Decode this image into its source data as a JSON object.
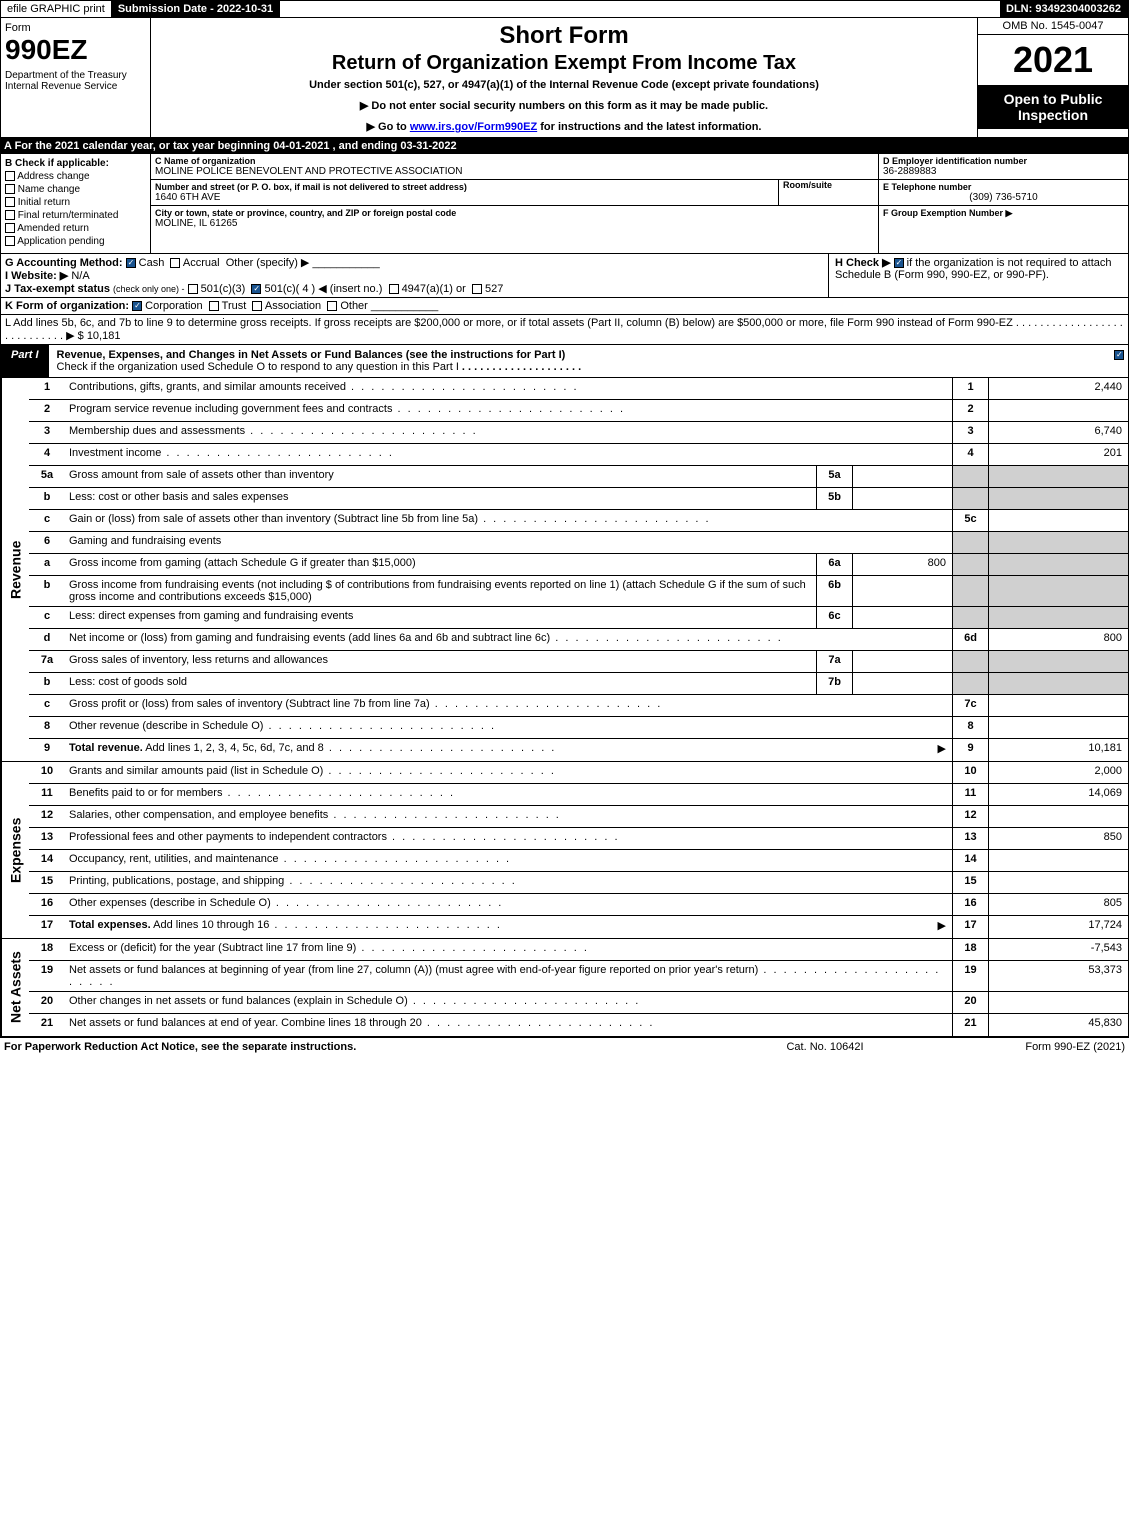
{
  "topbar": {
    "efile": "efile GRAPHIC print",
    "submission_label": "Submission Date - 2022-10-31",
    "dln": "DLN: 93492304003262"
  },
  "header": {
    "form_label": "Form",
    "form_no": "990EZ",
    "dept": "Department of the Treasury\nInternal Revenue Service",
    "title": "Short Form",
    "subtitle": "Return of Organization Exempt From Income Tax",
    "under": "Under section 501(c), 527, or 4947(a)(1) of the Internal Revenue Code (except private foundations)",
    "note1": "▶ Do not enter social security numbers on this form as it may be made public.",
    "note2_pre": "▶ Go to ",
    "note2_link": "www.irs.gov/Form990EZ",
    "note2_post": " for instructions and the latest information.",
    "omb": "OMB No. 1545-0047",
    "year": "2021",
    "open": "Open to Public Inspection"
  },
  "rowA": "A  For the 2021 calendar year, or tax year beginning 04-01-2021 , and ending 03-31-2022",
  "colB": {
    "hdr": "B  Check if applicable:",
    "opts": [
      "Address change",
      "Name change",
      "Initial return",
      "Final return/terminated",
      "Amended return",
      "Application pending"
    ]
  },
  "colC": {
    "name_label": "C Name of organization",
    "name": "MOLINE POLICE BENEVOLENT AND PROTECTIVE ASSOCIATION",
    "addr_label": "Number and street (or P. O. box, if mail is not delivered to street address)",
    "addr": "1640 6TH AVE",
    "room_label": "Room/suite",
    "city_label": "City or town, state or province, country, and ZIP or foreign postal code",
    "city": "MOLINE, IL  61265"
  },
  "colDEF": {
    "d_label": "D Employer identification number",
    "d_val": "36-2889883",
    "e_label": "E Telephone number",
    "e_val": "(309) 736-5710",
    "f_label": "F Group Exemption Number  ▶"
  },
  "rowG": {
    "label": "G Accounting Method:",
    "cash": "Cash",
    "accrual": "Accrual",
    "other": "Other (specify) ▶"
  },
  "rowH": {
    "label": "H  Check ▶",
    "text": "if the organization is not required to attach Schedule B (Form 990, 990-EZ, or 990-PF)."
  },
  "rowI": {
    "label": "I Website: ▶",
    "val": "N/A"
  },
  "rowJ": {
    "label": "J Tax-exempt status",
    "sub": "(check only one) -",
    "opts": [
      "501(c)(3)",
      "501(c)( 4 ) ◀ (insert no.)",
      "4947(a)(1) or",
      "527"
    ]
  },
  "rowK": {
    "label": "K Form of organization:",
    "opts": [
      "Corporation",
      "Trust",
      "Association",
      "Other"
    ]
  },
  "rowL": {
    "text": "L Add lines 5b, 6c, and 7b to line 9 to determine gross receipts. If gross receipts are $200,000 or more, or if total assets (Part II, column (B) below) are $500,000 or more, file Form 990 instead of Form 990-EZ",
    "val": "▶ $ 10,181"
  },
  "part1": {
    "tag": "Part I",
    "title": "Revenue, Expenses, and Changes in Net Assets or Fund Balances (see the instructions for Part I)",
    "check_note": "Check if the organization used Schedule O to respond to any question in this Part I"
  },
  "sidebars": {
    "revenue": "Revenue",
    "expenses": "Expenses",
    "netassets": "Net Assets"
  },
  "lines": {
    "l1": {
      "n": "1",
      "d": "Contributions, gifts, grants, and similar amounts received",
      "ln": "1",
      "amt": "2,440"
    },
    "l2": {
      "n": "2",
      "d": "Program service revenue including government fees and contracts",
      "ln": "2",
      "amt": ""
    },
    "l3": {
      "n": "3",
      "d": "Membership dues and assessments",
      "ln": "3",
      "amt": "6,740"
    },
    "l4": {
      "n": "4",
      "d": "Investment income",
      "ln": "4",
      "amt": "201"
    },
    "l5a": {
      "n": "5a",
      "d": "Gross amount from sale of assets other than inventory",
      "sn": "5a",
      "sv": ""
    },
    "l5b": {
      "n": "b",
      "d": "Less: cost or other basis and sales expenses",
      "sn": "5b",
      "sv": ""
    },
    "l5c": {
      "n": "c",
      "d": "Gain or (loss) from sale of assets other than inventory (Subtract line 5b from line 5a)",
      "ln": "5c",
      "amt": ""
    },
    "l6": {
      "n": "6",
      "d": "Gaming and fundraising events"
    },
    "l6a": {
      "n": "a",
      "d": "Gross income from gaming (attach Schedule G if greater than $15,000)",
      "sn": "6a",
      "sv": "800"
    },
    "l6b": {
      "n": "b",
      "d": "Gross income from fundraising events (not including $                   of contributions from fundraising events reported on line 1) (attach Schedule G if the sum of such gross income and contributions exceeds $15,000)",
      "sn": "6b",
      "sv": ""
    },
    "l6c": {
      "n": "c",
      "d": "Less: direct expenses from gaming and fundraising events",
      "sn": "6c",
      "sv": ""
    },
    "l6d": {
      "n": "d",
      "d": "Net income or (loss) from gaming and fundraising events (add lines 6a and 6b and subtract line 6c)",
      "ln": "6d",
      "amt": "800"
    },
    "l7a": {
      "n": "7a",
      "d": "Gross sales of inventory, less returns and allowances",
      "sn": "7a",
      "sv": ""
    },
    "l7b": {
      "n": "b",
      "d": "Less: cost of goods sold",
      "sn": "7b",
      "sv": ""
    },
    "l7c": {
      "n": "c",
      "d": "Gross profit or (loss) from sales of inventory (Subtract line 7b from line 7a)",
      "ln": "7c",
      "amt": ""
    },
    "l8": {
      "n": "8",
      "d": "Other revenue (describe in Schedule O)",
      "ln": "8",
      "amt": ""
    },
    "l9": {
      "n": "9",
      "d": "Total revenue. Add lines 1, 2, 3, 4, 5c, 6d, 7c, and 8",
      "ln": "9",
      "amt": "10,181",
      "bold": true,
      "arrow": "▶"
    },
    "l10": {
      "n": "10",
      "d": "Grants and similar amounts paid (list in Schedule O)",
      "ln": "10",
      "amt": "2,000"
    },
    "l11": {
      "n": "11",
      "d": "Benefits paid to or for members",
      "ln": "11",
      "amt": "14,069"
    },
    "l12": {
      "n": "12",
      "d": "Salaries, other compensation, and employee benefits",
      "ln": "12",
      "amt": ""
    },
    "l13": {
      "n": "13",
      "d": "Professional fees and other payments to independent contractors",
      "ln": "13",
      "amt": "850"
    },
    "l14": {
      "n": "14",
      "d": "Occupancy, rent, utilities, and maintenance",
      "ln": "14",
      "amt": ""
    },
    "l15": {
      "n": "15",
      "d": "Printing, publications, postage, and shipping",
      "ln": "15",
      "amt": ""
    },
    "l16": {
      "n": "16",
      "d": "Other expenses (describe in Schedule O)",
      "ln": "16",
      "amt": "805"
    },
    "l17": {
      "n": "17",
      "d": "Total expenses. Add lines 10 through 16",
      "ln": "17",
      "amt": "17,724",
      "bold": true,
      "arrow": "▶"
    },
    "l18": {
      "n": "18",
      "d": "Excess or (deficit) for the year (Subtract line 17 from line 9)",
      "ln": "18",
      "amt": "-7,543"
    },
    "l19": {
      "n": "19",
      "d": "Net assets or fund balances at beginning of year (from line 27, column (A)) (must agree with end-of-year figure reported on prior year's return)",
      "ln": "19",
      "amt": "53,373"
    },
    "l20": {
      "n": "20",
      "d": "Other changes in net assets or fund balances (explain in Schedule O)",
      "ln": "20",
      "amt": ""
    },
    "l21": {
      "n": "21",
      "d": "Net assets or fund balances at end of year. Combine lines 18 through 20",
      "ln": "21",
      "amt": "45,830"
    }
  },
  "footer": {
    "l": "For Paperwork Reduction Act Notice, see the separate instructions.",
    "c": "Cat. No. 10642I",
    "r": "Form 990-EZ (2021)"
  }
}
